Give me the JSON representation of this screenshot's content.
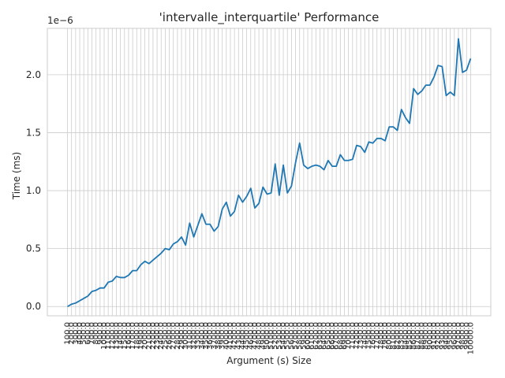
{
  "chart_data": {
    "type": "line",
    "title": "'intervalle_interquartile' Performance",
    "xlabel": "Argument (s) Size",
    "ylabel": "Time (ms)",
    "y_offset_label": "1e−6",
    "y_ticks": [
      "0.0",
      "0.5",
      "1.0",
      "1.5",
      "2.0"
    ],
    "y_tick_values": [
      0.0,
      0.5,
      1.0,
      1.5,
      2.0
    ],
    "ylim": [
      -0.08,
      2.4
    ],
    "grid": true,
    "color": "#1f77b4",
    "x": [
      100,
      200,
      300,
      400,
      500,
      600,
      700,
      800,
      900,
      1000,
      1100,
      1200,
      1300,
      1400,
      1500,
      1600,
      1700,
      1800,
      1900,
      2000,
      2100,
      2200,
      2300,
      2400,
      2500,
      2600,
      2700,
      2800,
      2900,
      3000,
      3100,
      3200,
      3300,
      3400,
      3500,
      3600,
      3700,
      3800,
      3900,
      4000,
      4100,
      4200,
      4300,
      4400,
      4500,
      4600,
      4700,
      4800,
      4900,
      5000,
      5100,
      5200,
      5300,
      5400,
      5500,
      5600,
      5700,
      5800,
      5900,
      6000,
      6100,
      6200,
      6300,
      6400,
      6500,
      6600,
      6700,
      6800,
      6900,
      7000,
      7100,
      7200,
      7300,
      7400,
      7500,
      7600,
      7700,
      7800,
      7900,
      8000,
      8100,
      8200,
      8300,
      8400,
      8500,
      8600,
      8700,
      8800,
      8900,
      9000,
      9100,
      9200,
      9300,
      9400,
      9500,
      9600,
      9700,
      9800,
      9900,
      10000
    ],
    "values": [
      0.0,
      0.02,
      0.03,
      0.05,
      0.07,
      0.09,
      0.13,
      0.14,
      0.16,
      0.16,
      0.21,
      0.22,
      0.26,
      0.25,
      0.25,
      0.27,
      0.31,
      0.31,
      0.36,
      0.39,
      0.37,
      0.4,
      0.43,
      0.46,
      0.5,
      0.49,
      0.54,
      0.56,
      0.6,
      0.53,
      0.72,
      0.6,
      0.7,
      0.8,
      0.71,
      0.71,
      0.65,
      0.69,
      0.84,
      0.9,
      0.78,
      0.82,
      0.96,
      0.9,
      0.95,
      1.02,
      0.85,
      0.89,
      1.03,
      0.97,
      0.98,
      1.23,
      0.96,
      1.22,
      0.98,
      1.04,
      1.24,
      1.41,
      1.22,
      1.19,
      1.21,
      1.22,
      1.21,
      1.18,
      1.26,
      1.21,
      1.21,
      1.31,
      1.26,
      1.26,
      1.27,
      1.39,
      1.38,
      1.33,
      1.42,
      1.41,
      1.45,
      1.45,
      1.43,
      1.55,
      1.55,
      1.52,
      1.7,
      1.63,
      1.58,
      1.88,
      1.83,
      1.86,
      1.91,
      1.91,
      1.98,
      2.08,
      2.07,
      1.82,
      1.85,
      1.82,
      2.31,
      2.02,
      2.04,
      2.14
    ]
  }
}
